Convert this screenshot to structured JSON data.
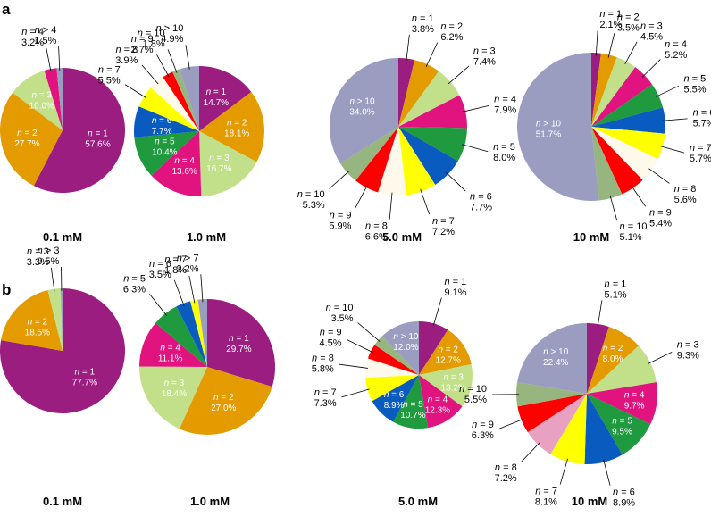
{
  "colors": {
    "n1": "#9b1d80",
    "n2": "#e49b00",
    "n3": "#c2e08a",
    "n4": "#e0137f",
    "n5": "#1f9a3f",
    "n6": "#0a5bc0",
    "n7": "#ffff00",
    "n8": "#fff9ec",
    "n9": "#ff0000",
    "n10": "#97b57f",
    "gt": "#9b9dc0",
    "n8b": "#e8a1c1"
  },
  "chart_data": [
    {
      "type": "pie",
      "panel": "a",
      "title": "0.1 mM",
      "slices": [
        {
          "n": "1",
          "value": 57.6,
          "label": "57.6%",
          "color_key": "n1",
          "inside": true
        },
        {
          "n": "2",
          "value": 27.7,
          "label": "27.7%",
          "color_key": "n2",
          "inside": true
        },
        {
          "n": "3",
          "value": 10.0,
          "label": "10.0%",
          "color_key": "n3",
          "inside": true
        },
        {
          "n": "4",
          "value": 3.2,
          "label": "3.2%",
          "color_key": "n4",
          "inside": false
        },
        {
          "n": "> 4",
          "value": 1.5,
          "label": "1.5%",
          "color_key": "gt",
          "inside": false
        }
      ]
    },
    {
      "type": "pie",
      "panel": "a",
      "title": "1.0 mM",
      "slices": [
        {
          "n": "1",
          "value": 14.7,
          "label": "14.7%",
          "color_key": "n1",
          "inside": true
        },
        {
          "n": "2",
          "value": 18.1,
          "label": "18.1%",
          "color_key": "n2",
          "inside": true
        },
        {
          "n": "3",
          "value": 16.7,
          "label": "16.7%",
          "color_key": "n3",
          "inside": true
        },
        {
          "n": "4",
          "value": 13.6,
          "label": "13.6%",
          "color_key": "n4",
          "inside": true
        },
        {
          "n": "5",
          "value": 10.4,
          "label": "10.4%",
          "color_key": "n5",
          "inside": true
        },
        {
          "n": "6",
          "value": 7.7,
          "label": "7.7%",
          "color_key": "n6",
          "inside": true
        },
        {
          "n": "7",
          "value": 5.5,
          "label": "5.5%",
          "color_key": "n7",
          "inside": false
        },
        {
          "n": "8",
          "value": 3.9,
          "label": "3.9%",
          "color_key": "n8",
          "inside": false
        },
        {
          "n": "9",
          "value": 2.7,
          "label": "2.7%",
          "color_key": "n9",
          "inside": false
        },
        {
          "n": "10",
          "value": 1.8,
          "label": "1.8%",
          "color_key": "n10",
          "inside": false
        },
        {
          "n": "> 10",
          "value": 4.9,
          "label": "4.9%",
          "color_key": "gt",
          "inside": false
        }
      ]
    },
    {
      "type": "pie",
      "panel": "a",
      "title": "5.0 mM",
      "slices": [
        {
          "n": "1",
          "value": 3.8,
          "label": "3.8%",
          "color_key": "n1",
          "inside": false
        },
        {
          "n": "2",
          "value": 6.2,
          "label": "6.2%",
          "color_key": "n2",
          "inside": false
        },
        {
          "n": "3",
          "value": 7.4,
          "label": "7.4%",
          "color_key": "n3",
          "inside": false
        },
        {
          "n": "4",
          "value": 7.9,
          "label": "7.9%",
          "color_key": "n4",
          "inside": false
        },
        {
          "n": "5",
          "value": 8.0,
          "label": "8.0%",
          "color_key": "n5",
          "inside": false
        },
        {
          "n": "6",
          "value": 7.7,
          "label": "7.7%",
          "color_key": "n6",
          "inside": false
        },
        {
          "n": "7",
          "value": 7.2,
          "label": "7.2%",
          "color_key": "n7",
          "inside": false
        },
        {
          "n": "8",
          "value": 6.6,
          "label": "6.6%",
          "color_key": "n8",
          "inside": false
        },
        {
          "n": "9",
          "value": 5.9,
          "label": "5.9%",
          "color_key": "n9",
          "inside": false
        },
        {
          "n": "10",
          "value": 5.3,
          "label": "5.3%",
          "color_key": "n10",
          "inside": false
        },
        {
          "n": "> 10",
          "value": 34.0,
          "label": "34.0%",
          "color_key": "gt",
          "inside": true
        }
      ]
    },
    {
      "type": "pie",
      "panel": "a",
      "title": "10 mM",
      "slices": [
        {
          "n": "1",
          "value": 2.1,
          "label": "2.1%",
          "color_key": "n1",
          "inside": false
        },
        {
          "n": "2",
          "value": 3.5,
          "label": "3.5%",
          "color_key": "n2",
          "inside": false
        },
        {
          "n": "3",
          "value": 4.5,
          "label": "4.5%",
          "color_key": "n3",
          "inside": false
        },
        {
          "n": "4",
          "value": 5.2,
          "label": "5.2%",
          "color_key": "n4",
          "inside": false
        },
        {
          "n": "5",
          "value": 5.5,
          "label": "5.5%",
          "color_key": "n5",
          "inside": false
        },
        {
          "n": "6",
          "value": 5.7,
          "label": "5.7%",
          "color_key": "n6",
          "inside": false
        },
        {
          "n": "7",
          "value": 5.7,
          "label": "5.7%",
          "color_key": "n7",
          "inside": false
        },
        {
          "n": "8",
          "value": 5.6,
          "label": "5.6%",
          "color_key": "n8",
          "inside": false
        },
        {
          "n": "9",
          "value": 5.4,
          "label": "5.4%",
          "color_key": "n9",
          "inside": false
        },
        {
          "n": "10",
          "value": 5.1,
          "label": "5.1%",
          "color_key": "n10",
          "inside": false
        },
        {
          "n": "> 10",
          "value": 51.7,
          "label": "51.7%",
          "color_key": "gt",
          "inside": true
        }
      ]
    },
    {
      "type": "pie",
      "panel": "b",
      "title": "0.1 mM",
      "slices": [
        {
          "n": "1",
          "value": 77.7,
          "label": "77.7%",
          "color_key": "n1",
          "inside": true
        },
        {
          "n": "2",
          "value": 18.5,
          "label": "18.5%",
          "color_key": "n2",
          "inside": true
        },
        {
          "n": "3",
          "value": 3.3,
          "label": "3.3%",
          "color_key": "n3",
          "inside": false
        },
        {
          "n": "> 3",
          "value": 0.5,
          "label": "0.5%",
          "color_key": "gt",
          "inside": false
        }
      ]
    },
    {
      "type": "pie",
      "panel": "b",
      "title": "1.0 mM",
      "slices": [
        {
          "n": "1",
          "value": 29.7,
          "label": "29.7%",
          "color_key": "n1",
          "inside": true
        },
        {
          "n": "2",
          "value": 27.0,
          "label": "27.0%",
          "color_key": "n2",
          "inside": true
        },
        {
          "n": "3",
          "value": 18.4,
          "label": "18.4%",
          "color_key": "n3",
          "inside": true
        },
        {
          "n": "4",
          "value": 11.1,
          "label": "11.1%",
          "color_key": "n4",
          "inside": true
        },
        {
          "n": "5",
          "value": 6.3,
          "label": "6.3%",
          "color_key": "n5",
          "inside": false
        },
        {
          "n": "6",
          "value": 3.5,
          "label": "3.5%",
          "color_key": "n6",
          "inside": false
        },
        {
          "n": "7",
          "value": 1.8,
          "label": "1.8%",
          "color_key": "n7",
          "inside": false
        },
        {
          "n": "> 7",
          "value": 2.2,
          "label": "2.2%",
          "color_key": "gt",
          "inside": false
        }
      ]
    },
    {
      "type": "pie",
      "panel": "b",
      "title": "5.0 mM",
      "slices": [
        {
          "n": "1",
          "value": 9.1,
          "label": "9.1%",
          "color_key": "n1",
          "inside": false
        },
        {
          "n": "2",
          "value": 12.7,
          "label": "12.7%",
          "color_key": "n2",
          "inside": true
        },
        {
          "n": "3",
          "value": 13.2,
          "label": "13.2%",
          "color_key": "n3",
          "inside": true
        },
        {
          "n": "4",
          "value": 12.3,
          "label": "12.3%",
          "color_key": "n4",
          "inside": true
        },
        {
          "n": "5",
          "value": 10.7,
          "label": "10.7%",
          "color_key": "n5",
          "inside": true
        },
        {
          "n": "6",
          "value": 8.9,
          "label": "8.9%",
          "color_key": "n6",
          "inside": true
        },
        {
          "n": "7",
          "value": 7.3,
          "label": "7.3%",
          "color_key": "n7",
          "inside": false
        },
        {
          "n": "8",
          "value": 5.8,
          "label": "5.8%",
          "color_key": "n8",
          "inside": false
        },
        {
          "n": "9",
          "value": 4.5,
          "label": "4.5%",
          "color_key": "n9",
          "inside": false
        },
        {
          "n": "10",
          "value": 3.5,
          "label": "3.5%",
          "color_key": "n10",
          "inside": false
        },
        {
          "n": "> 10",
          "value": 12.0,
          "label": "12.0%",
          "color_key": "gt",
          "inside": true
        }
      ]
    },
    {
      "type": "pie",
      "panel": "b",
      "title": "10 mM",
      "slices": [
        {
          "n": "1",
          "value": 5.1,
          "label": "5.1%",
          "color_key": "n1",
          "inside": false
        },
        {
          "n": "2",
          "value": 8.0,
          "label": "8.0%",
          "color_key": "n2",
          "inside": true
        },
        {
          "n": "3",
          "value": 9.3,
          "label": "9.3%",
          "color_key": "n3",
          "inside": false
        },
        {
          "n": "4",
          "value": 9.7,
          "label": "9.7%",
          "color_key": "n4",
          "inside": true
        },
        {
          "n": "5",
          "value": 9.5,
          "label": "9.5%",
          "color_key": "n5",
          "inside": true
        },
        {
          "n": "6",
          "value": 8.9,
          "label": "8.9%",
          "color_key": "n6",
          "inside": false
        },
        {
          "n": "7",
          "value": 8.1,
          "label": "8.1%",
          "color_key": "n7",
          "inside": false
        },
        {
          "n": "8",
          "value": 7.2,
          "label": "7.2%",
          "color_key": "n8b",
          "inside": false
        },
        {
          "n": "9",
          "value": 6.3,
          "label": "6.3%",
          "color_key": "n9",
          "inside": false
        },
        {
          "n": "10",
          "value": 5.5,
          "label": "5.5%",
          "color_key": "n10",
          "inside": false
        },
        {
          "n": "> 10",
          "value": 22.4,
          "label": "22.4%",
          "color_key": "gt",
          "inside": true
        }
      ]
    }
  ]
}
